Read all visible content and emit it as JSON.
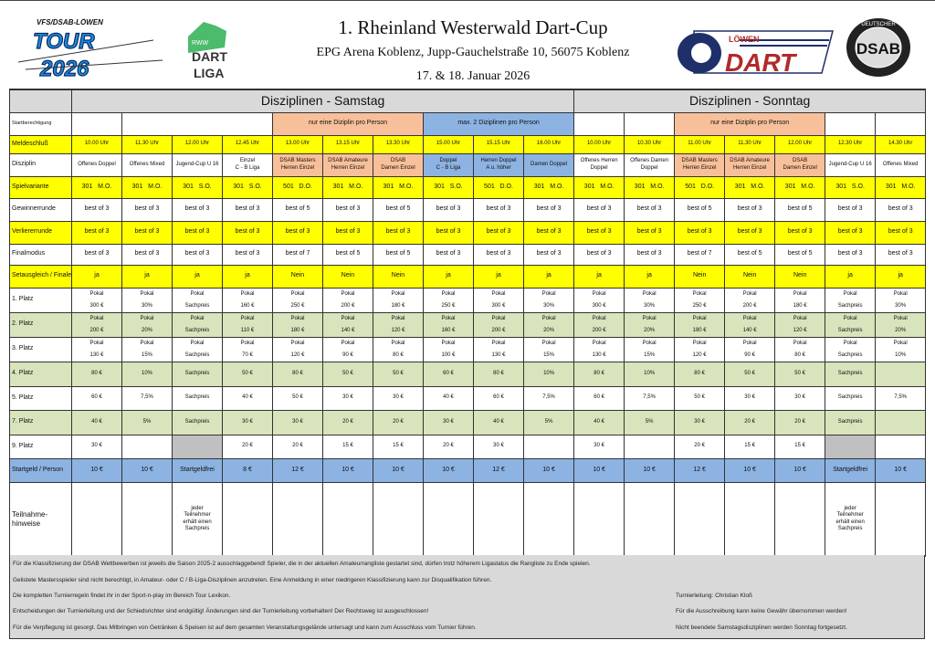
{
  "header": {
    "title": "1. Rheinland Westerwald Dart-Cup",
    "venue": "EPG Arena Koblenz, Jupp-Gauchelstraße 10, 56075 Koblenz",
    "date": "17. & 18. Januar 2026",
    "logos": {
      "tour": {
        "top": "VFS/DSAB-LÖWEN",
        "line1": "TOUR",
        "line2": "2026"
      },
      "rww": {
        "small": "RWW",
        "line1": "DART",
        "line2": "LIGA"
      },
      "loewen": {
        "small": "LÖWEN",
        "big": "DART"
      },
      "dsab": {
        "center": "DSAB",
        "ring": "DEUTSCHER SPORTAUTOMATENBUND E.V."
      }
    }
  },
  "colors": {
    "yellow": "#ffff00",
    "green": "#d8e4bc",
    "blue": "#8db3e2",
    "orange": "#f8c09a",
    "grey": "#c0c0c0",
    "header_grey": "#d9d9d9"
  },
  "table": {
    "day_headers": [
      "Disziplinen - Samstag",
      "Disziplinen - Sonntag"
    ],
    "row_labels": {
      "startberechtigung": "Startberechtigung",
      "time": "Meldeschluß",
      "discipline": "Disziplin",
      "variant": "Spielvariante",
      "winner": "Gewinnerrunde",
      "loser": "Verliererrunde",
      "final": "Finalmodus",
      "set_balance": "Setausgleich / Finale",
      "p1": "1. Platz",
      "p2": "2. Platz",
      "p3": "3. Platz",
      "p4": "4. Platz",
      "p5": "5. Platz",
      "p7": "7. Platz",
      "p9": "9. Platz",
      "fee": "Startgeld / Person",
      "note": "Teilnahme-hinweise"
    },
    "startberechtigung": [
      "",
      "",
      "nur eine Diziplin pro Person",
      "max. 2 Diziplinen pro Person",
      "",
      "",
      "nur eine Diziplin pro Person",
      "",
      ""
    ],
    "columns": [
      {
        "group": "",
        "time": "10.00 Uhr",
        "discipline": "Offenes Doppel",
        "variant": "301   M.O.",
        "winner": "best of 3",
        "loser": "best of 3",
        "final": "best of 3",
        "set_balance": "ja",
        "p1": [
          "Pokal",
          "300 €"
        ],
        "p2": [
          "Pokal",
          "200 €"
        ],
        "p3": [
          "Pokal",
          "130 €"
        ],
        "p4": "80 €",
        "p5": "60 €",
        "p7": "40 €",
        "p9": "30 €",
        "fee": "10 €",
        "note": ""
      },
      {
        "group": "",
        "time": "11.30 Uhr",
        "discipline": "Offenes Mixed",
        "variant": "301   M.O.",
        "winner": "best of 3",
        "loser": "best of 3",
        "final": "best of 3",
        "set_balance": "ja",
        "p1": [
          "Pokal",
          "30%"
        ],
        "p2": [
          "Pokal",
          "20%"
        ],
        "p3": [
          "Pokal",
          "15%"
        ],
        "p4": "10%",
        "p5": "7,5%",
        "p7": "5%",
        "p9": "",
        "fee": "10 €",
        "note": ""
      },
      {
        "group": "",
        "time": "12.00 Uhr",
        "discipline": "Jugend-Cup U 16",
        "variant": "301   S.O.",
        "winner": "best of 3",
        "loser": "best of 3",
        "final": "best of 3",
        "set_balance": "ja",
        "p1": [
          "Pokal",
          "Sachpreis"
        ],
        "p2": [
          "Pokal",
          "Sachpreis"
        ],
        "p3": [
          "Pokal",
          "Sachpreis"
        ],
        "p4": "Sachpreis",
        "p5": "Sachpreis",
        "p7": "Sachpreis",
        "p9": null,
        "fee": "Startgeldfrei",
        "note": "jeder Teilnehmer erhält einen Sachpreis"
      },
      {
        "group": "",
        "time": "12.45 Uhr",
        "discipline": "Einzel\nC - B Liga",
        "variant": "301   S.O.",
        "winner": "best of 3",
        "loser": "best of 3",
        "final": "best of 3",
        "set_balance": "ja",
        "p1": [
          "Pokal",
          "160 €"
        ],
        "p2": [
          "Pokal",
          "110 €"
        ],
        "p3": [
          "Pokal",
          "70 €"
        ],
        "p4": "50 €",
        "p5": "40 €",
        "p7": "30 €",
        "p9": "20 €",
        "fee": "8 €",
        "note": ""
      },
      {
        "group": "orange",
        "time": "13.00 Uhr",
        "discipline": "DSAB Masters\nHerren Einzel",
        "variant": "501   D.O.",
        "winner": "best of 5",
        "loser": "best of 3",
        "final": "best of 7",
        "set_balance": "Nein",
        "p1": [
          "Pokal",
          "250 €"
        ],
        "p2": [
          "Pokal",
          "180 €"
        ],
        "p3": [
          "Pokal",
          "120 €"
        ],
        "p4": "80 €",
        "p5": "50 €",
        "p7": "30 €",
        "p9": "20 €",
        "fee": "12 €",
        "note": ""
      },
      {
        "group": "orange",
        "time": "13.15 Uhr",
        "discipline": "DSAB Amateure\nHerren Einzel",
        "variant": "301   M.O.",
        "winner": "best of 3",
        "loser": "best of 3",
        "final": "best of 5",
        "set_balance": "Nein",
        "p1": [
          "Pokal",
          "200 €"
        ],
        "p2": [
          "Pokal",
          "140 €"
        ],
        "p3": [
          "Pokal",
          "90 €"
        ],
        "p4": "50 €",
        "p5": "30 €",
        "p7": "20 €",
        "p9": "15 €",
        "fee": "10 €",
        "note": ""
      },
      {
        "group": "orange",
        "time": "13.30 Uhr",
        "discipline": "DSAB\nDamen Einzel",
        "variant": "301   M.O.",
        "winner": "best of 5",
        "loser": "best of 3",
        "final": "best of 5",
        "set_balance": "Nein",
        "p1": [
          "Pokal",
          "180 €"
        ],
        "p2": [
          "Pokal",
          "120 €"
        ],
        "p3": [
          "Pokal",
          "80 €"
        ],
        "p4": "50 €",
        "p5": "30 €",
        "p7": "20 €",
        "p9": "15 €",
        "fee": "10 €",
        "note": ""
      },
      {
        "group": "blue",
        "time": "15.00 Uhr",
        "discipline": "Doppel\nC - B Liga",
        "variant": "301   S.O.",
        "winner": "best of 3",
        "loser": "best of 3",
        "final": "best of 3",
        "set_balance": "ja",
        "p1": [
          "Pokal",
          "250 €"
        ],
        "p2": [
          "Pokal",
          "160 €"
        ],
        "p3": [
          "Pokal",
          "100 €"
        ],
        "p4": "60 €",
        "p5": "40 €",
        "p7": "30 €",
        "p9": "20 €",
        "fee": "10 €",
        "note": ""
      },
      {
        "group": "blue",
        "time": "15.15 Uhr",
        "discipline": "Herren Doppel\nA u. höher",
        "variant": "501   D.O.",
        "winner": "best of 3",
        "loser": "best of 3",
        "final": "best of 3",
        "set_balance": "ja",
        "p1": [
          "Pokal",
          "300 €"
        ],
        "p2": [
          "Pokal",
          "200 €"
        ],
        "p3": [
          "Pokal",
          "130 €"
        ],
        "p4": "80 €",
        "p5": "60 €",
        "p7": "40 €",
        "p9": "30 €",
        "fee": "12 €",
        "note": ""
      },
      {
        "group": "blue",
        "time": "16.00 Uhr",
        "discipline": "Damen Doppel",
        "variant": "301   M.O.",
        "winner": "best of 3",
        "loser": "best of 3",
        "final": "best of 3",
        "set_balance": "ja",
        "p1": [
          "Pokal",
          "30%"
        ],
        "p2": [
          "Pokal",
          "20%"
        ],
        "p3": [
          "Pokal",
          "15%"
        ],
        "p4": "10%",
        "p5": "7,5%",
        "p7": "5%",
        "p9": "",
        "fee": "10 €",
        "note": ""
      },
      {
        "group": "",
        "time": "10.00 Uhr",
        "discipline": "Offenes Herren\nDoppel",
        "variant": "301   M.O.",
        "winner": "best of 3",
        "loser": "best of 3",
        "final": "best of 3",
        "set_balance": "ja",
        "p1": [
          "Pokal",
          "300 €"
        ],
        "p2": [
          "Pokal",
          "200 €"
        ],
        "p3": [
          "Pokal",
          "130 €"
        ],
        "p4": "80 €",
        "p5": "60 €",
        "p7": "40 €",
        "p9": "30 €",
        "fee": "10 €",
        "note": ""
      },
      {
        "group": "",
        "time": "10.30 Uhr",
        "discipline": "Offenes Damen\nDoppel",
        "variant": "301   M.O.",
        "winner": "best of 3",
        "loser": "best of 3",
        "final": "best of 3",
        "set_balance": "ja",
        "p1": [
          "Pokal",
          "30%"
        ],
        "p2": [
          "Pokal",
          "20%"
        ],
        "p3": [
          "Pokal",
          "15%"
        ],
        "p4": "10%",
        "p5": "7,5%",
        "p7": "5%",
        "p9": "",
        "fee": "10 €",
        "note": ""
      },
      {
        "group": "orange",
        "time": "11.00 Uhr",
        "discipline": "DSAB Masters\nHerren Einzel",
        "variant": "501   D.O.",
        "winner": "best of 5",
        "loser": "best of 3",
        "final": "best of 7",
        "set_balance": "Nein",
        "p1": [
          "Pokal",
          "250 €"
        ],
        "p2": [
          "Pokal",
          "180 €"
        ],
        "p3": [
          "Pokal",
          "120 €"
        ],
        "p4": "80 €",
        "p5": "50 €",
        "p7": "30 €",
        "p9": "20 €",
        "fee": "12 €",
        "note": ""
      },
      {
        "group": "orange",
        "time": "11.30 Uhr",
        "discipline": "DSAB Amateure\nHerren Einzel",
        "variant": "301   M.O.",
        "winner": "best of 3",
        "loser": "best of 3",
        "final": "best of 5",
        "set_balance": "Nein",
        "p1": [
          "Pokal",
          "200 €"
        ],
        "p2": [
          "Pokal",
          "140 €"
        ],
        "p3": [
          "Pokal",
          "90 €"
        ],
        "p4": "50 €",
        "p5": "30 €",
        "p7": "20 €",
        "p9": "15 €",
        "fee": "10 €",
        "note": ""
      },
      {
        "group": "orange",
        "time": "12.00 Uhr",
        "discipline": "DSAB\nDamen Einzel",
        "variant": "301   M.O.",
        "winner": "best of 5",
        "loser": "best of 3",
        "final": "best of 5",
        "set_balance": "Nein",
        "p1": [
          "Pokal",
          "180 €"
        ],
        "p2": [
          "Pokal",
          "120 €"
        ],
        "p3": [
          "Pokal",
          "80 €"
        ],
        "p4": "50 €",
        "p5": "30 €",
        "p7": "20 €",
        "p9": "15 €",
        "fee": "10 €",
        "note": ""
      },
      {
        "group": "",
        "time": "12.30 Uhr",
        "discipline": "Jugend-Cup U 16",
        "variant": "301   S.O.",
        "winner": "best of 3",
        "loser": "best of 3",
        "final": "best of 3",
        "set_balance": "ja",
        "p1": [
          "Pokal",
          "Sachpreis"
        ],
        "p2": [
          "Pokal",
          "Sachpreis"
        ],
        "p3": [
          "Pokal",
          "Sachpreis"
        ],
        "p4": "Sachpreis",
        "p5": "Sachpreis",
        "p7": "Sachpreis",
        "p9": null,
        "fee": "Startgeldfrei",
        "note": "jeder Teilnehmer erhält einen Sachpreis"
      },
      {
        "group": "",
        "time": "14.30 Uhr",
        "discipline": "Offenes Mixed",
        "variant": "301   M.O.",
        "winner": "best of 3",
        "loser": "best of 3",
        "final": "best of 3",
        "set_balance": "ja",
        "p1": [
          "Pokal",
          "30%"
        ],
        "p2": [
          "Pokal",
          "20%"
        ],
        "p3": [
          "Pokal",
          "10%"
        ],
        "p4": "",
        "p5": "7,5%",
        "p7": "",
        "p9": "",
        "fee": "10 €",
        "note": ""
      }
    ]
  },
  "footer": {
    "left": [
      "Für die Klassifizierung der DSAB Wettbewerben ist jeweils die Saison 2025-2 ausschlaggebend! Spieler, die in der aktuellen Amateurrangliste gestartet sind, dürfen trotz höherem Ligastatus die Rangliste zu Ende spielen.",
      "Gelistete Mastersspieler sind nicht berechtigt, in Amateur- oder C / B-Liga-Disziplinen anzutreten. Eine Anmeldung in einer niedrigeren Klassifizierung kann zur Disqualifikation führen.",
      "Die kompletten Turnierregeln findet ihr in der Sport-n-play im Bereich Tour Lexikon.",
      "Entscheidungen der Turnierleitung und der Schiedsrichter sind endgültig! Änderungen sind der Turnierleitung vorbehalten! Der Rechtsweg ist ausgeschlossen!",
      "Für die Verpflegung ist gesorgt. Das Mitbringen von Getränken & Speisen ist auf dem gesamten Veranstaltungsgelände untersagt und kann zum Ausschluss vom Turnier führen."
    ],
    "right": [
      "Turnierleitung: Christian Kloß",
      "Für die Ausschreibung kann keine Gewähr übernommen werden!",
      "Nicht beendete Samstagsdisziplinen werden Sonntag fortgesetzt."
    ]
  }
}
